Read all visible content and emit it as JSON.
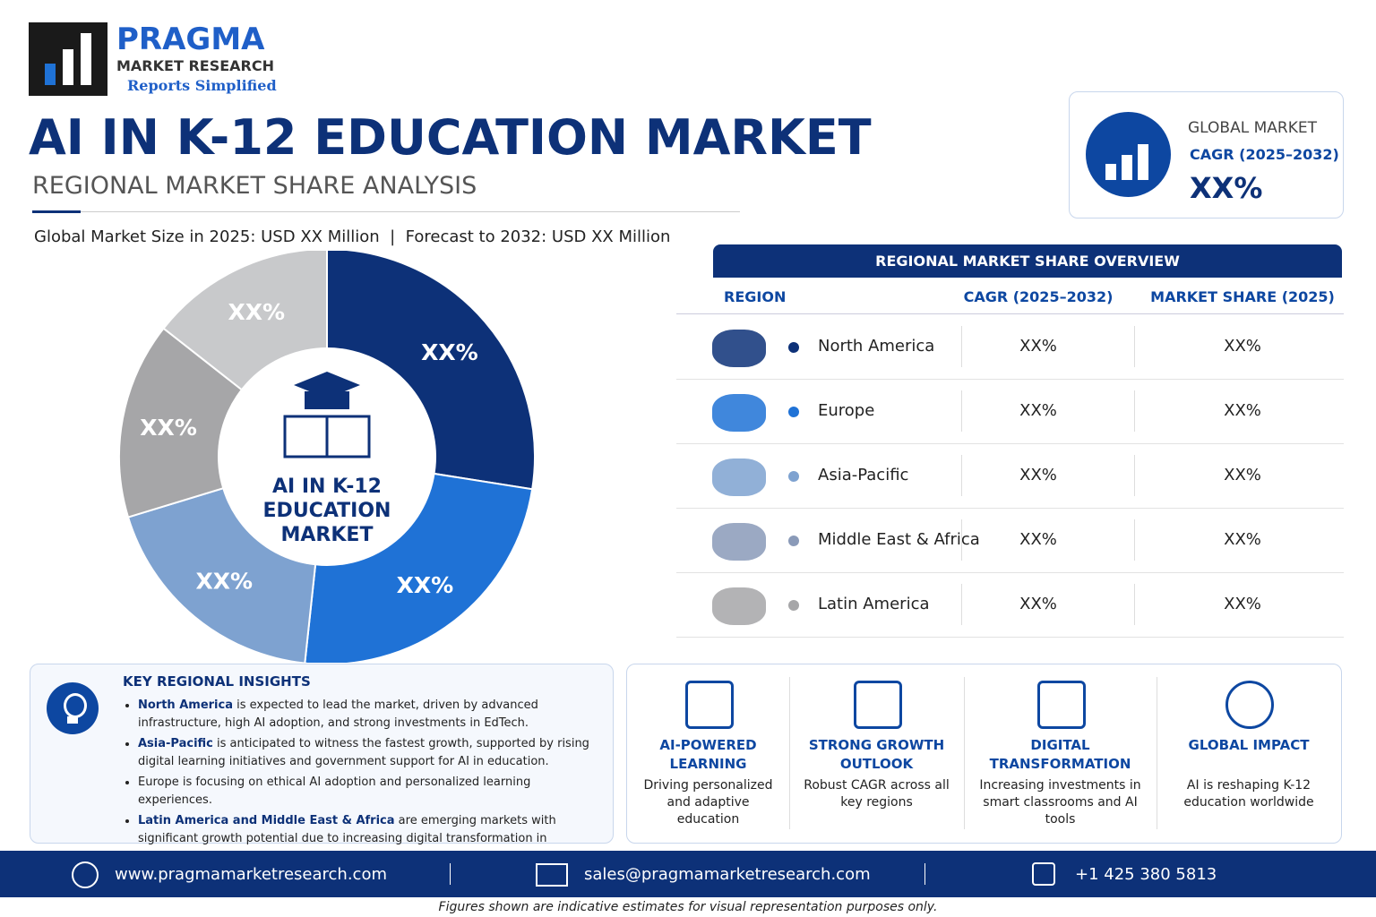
{
  "header": {
    "brand": "PRAGMA",
    "brand_sub": "MARKET RESEARCH",
    "tagline": "Reports Simplified",
    "title": "AI IN K-12 EDUCATION MARKET",
    "subtitle": "REGIONAL MARKET SHARE ANALYSIS",
    "market_size": "Global Market Size in 2025: USD XX Million",
    "separator": "|",
    "forecast": "Forecast to 2032: USD XX Million"
  },
  "cagr_card": {
    "label": "GLOBAL MARKET",
    "period": "CAGR (2025–2032)",
    "value": "XX%"
  },
  "chart_data": {
    "type": "pie",
    "values": [
      27.5,
      24.2,
      18.6,
      15.3,
      14.4
    ],
    "value_labels": [
      "XX%",
      "XX%",
      "XX%",
      "XX%",
      "XX%"
    ],
    "colors": [
      "#0d3178",
      "#1f72d6",
      "#7ea2d0",
      "#a6a6a8",
      "#c8c9cb"
    ],
    "center_label": [
      "AI IN K-12",
      "EDUCATION",
      "MARKET"
    ]
  },
  "table": {
    "title": "REGIONAL MARKET SHARE OVERVIEW",
    "headers": [
      "REGION",
      "CAGR (2025–2032)",
      "MARKET SHARE (2025)"
    ],
    "rows": [
      [
        "North America",
        "XX%",
        "XX%"
      ],
      [
        "Europe",
        "XX%",
        "XX%"
      ],
      [
        "Asia-Pacific",
        "XX%",
        "XX%"
      ],
      [
        "Middle East & Africa",
        "XX%",
        "XX%"
      ],
      [
        "Latin America",
        "XX%",
        "XX%"
      ]
    ],
    "dot_colors": [
      "#0d3178",
      "#1f72d6",
      "#7ea2d0",
      "#8a9ab8",
      "#a6a6a8"
    ]
  },
  "insights": {
    "title": "KEY REGIONAL INSIGHTS",
    "items": [
      {
        "bold": "North America",
        "text": " is expected to lead the market, driven by advanced infrastructure, high AI adoption, and strong investments in EdTech."
      },
      {
        "bold": "Asia-Pacific",
        "text": " is anticipated to witness the fastest growth, supported by rising digital learning initiatives and government support for AI in education."
      },
      {
        "text": "Europe is focusing on ethical AI adoption and personalized learning experiences."
      },
      {
        "bold": "Latin America and Middle East & Africa",
        "text": " are emerging markets with significant growth potential due to increasing digital transformation in education."
      }
    ]
  },
  "features": [
    {
      "title": "AI-POWERED LEARNING",
      "text": "Driving personalized and adaptive education"
    },
    {
      "title": "STRONG GROWTH OUTLOOK",
      "text": "Robust CAGR across all key regions"
    },
    {
      "title": "DIGITAL TRANSFORMATION",
      "text": "Increasing investments in smart classrooms and AI tools"
    },
    {
      "title": "GLOBAL IMPACT",
      "text": "AI is reshaping K-12 education worldwide"
    }
  ],
  "footer": {
    "website": "www.pragmamarketresearch.com",
    "email": "sales@pragmamarketresearch.com",
    "phone": "+1 425 380 5813",
    "note": "Figures shown are indicative estimates for visual representation purposes only."
  }
}
